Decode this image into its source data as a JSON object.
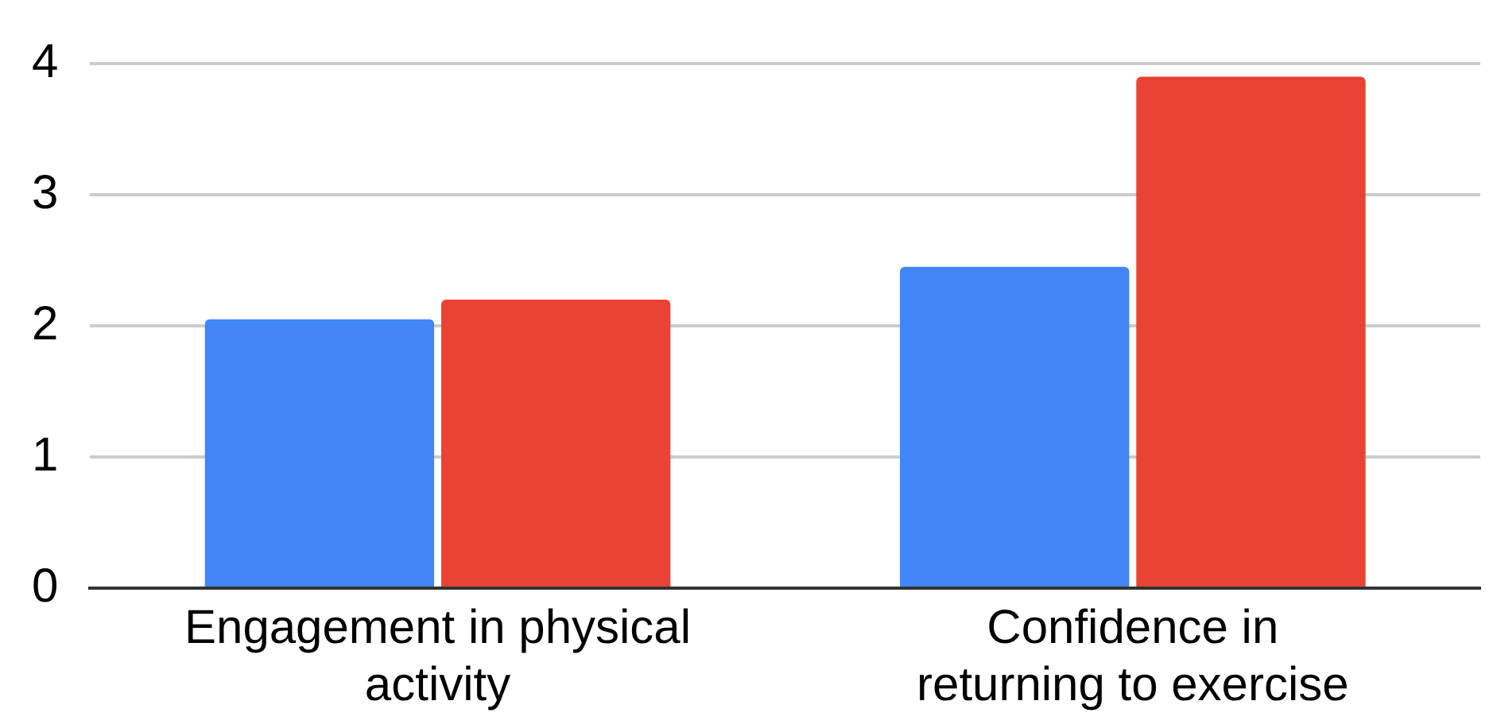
{
  "chart_data": {
    "type": "bar",
    "categories": [
      "Engagement in physical activity",
      "Confidence in returning to exercise"
    ],
    "series": [
      {
        "color": "#4285f4",
        "values": [
          2.05,
          2.45
        ]
      },
      {
        "color": "#ea4335",
        "values": [
          2.2,
          3.9
        ]
      }
    ],
    "ylim": [
      0,
      4
    ],
    "yticks": [
      0,
      1,
      2,
      3,
      4
    ],
    "grid": "y",
    "legend": false
  }
}
